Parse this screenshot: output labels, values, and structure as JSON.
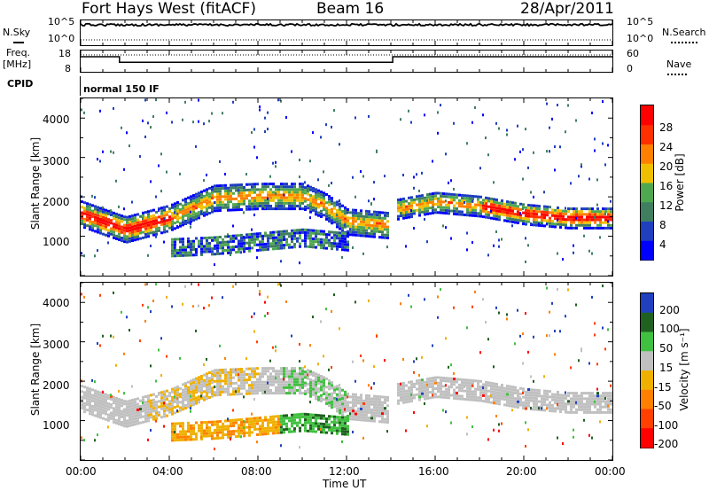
{
  "header": {
    "station": "Fort Hays West (fitACF)",
    "beam": "Beam 16",
    "date": "28/Apr/2011"
  },
  "top_panel": {
    "left_label": "N.Sky",
    "left_ticks": [
      "10^5",
      "10^0"
    ],
    "right_label": "N.Search",
    "right_ticks": [
      "10^5",
      "10^0"
    ]
  },
  "freq_panel": {
    "left_label_line1": "Freq.",
    "left_label_line2": "[MHz]",
    "left_ticks": [
      "18",
      "8"
    ],
    "right_label": "Nave",
    "right_ticks": [
      "60",
      "0"
    ]
  },
  "cpid": {
    "label": "CPID",
    "value": "normal 150 IF"
  },
  "x_axis": {
    "title": "Time UT",
    "ticks": [
      "00:00",
      "04:00",
      "08:00",
      "12:00",
      "16:00",
      "20:00",
      "00:00"
    ]
  },
  "power_panel": {
    "ylabel": "Slant Range [km]",
    "yticks": [
      "4000",
      "3000",
      "2000",
      "1000"
    ],
    "colorbar_title": "Power [dB]",
    "colorbar_ticks": [
      "28",
      "24",
      "20",
      "16",
      "12",
      "8",
      "4"
    ]
  },
  "velocity_panel": {
    "ylabel": "Slant Range [km]",
    "yticks": [
      "4000",
      "3000",
      "2000",
      "1000"
    ],
    "colorbar_title": "Velocity [m s⁻¹]",
    "colorbar_ticks": [
      "200",
      "100",
      "50",
      "15",
      "-15",
      "-50",
      "-100",
      "-200"
    ]
  },
  "colors": {
    "power_scale": [
      "#0000ff",
      "#1f3fbf",
      "#3f7f5f",
      "#4fa84f",
      "#f0c000",
      "#ff8000",
      "#ff3000",
      "#ff0000"
    ],
    "velocity_scale": [
      "#2040c0",
      "#206020",
      "#40c040",
      "#c0c0c0",
      "#f0b000",
      "#ff8000",
      "#ff4000",
      "#ff0000"
    ]
  },
  "chart_data": [
    {
      "type": "line",
      "panel": "noise",
      "series": [
        {
          "name": "N.Sky",
          "x": [
            "00:00",
            "04:00",
            "08:00",
            "12:00",
            "16:00",
            "20:00",
            "24:00"
          ],
          "values": [
            100000,
            100000,
            100000,
            100000,
            100000,
            100000,
            100000
          ]
        },
        {
          "name": "N.Search",
          "x": [
            "00:00",
            "24:00"
          ],
          "values": [
            1,
            1
          ]
        }
      ]
    },
    {
      "type": "line",
      "panel": "frequency",
      "series": [
        {
          "name": "Freq.",
          "x": [
            "00:00",
            "01:45",
            "01:45",
            "14:05",
            "14:05",
            "24:00"
          ],
          "values": [
            18,
            18,
            14.5,
            14.5,
            18,
            18
          ]
        },
        {
          "name": "Nave",
          "x": [
            "00:00",
            "24:00"
          ],
          "values": [
            58,
            58
          ]
        }
      ]
    },
    {
      "type": "heatmap",
      "panel": "power",
      "x_range": [
        "00:00",
        "24:00"
      ],
      "y_range": [
        0,
        4500
      ],
      "bands": [
        {
          "t": [
            0,
            2,
            4,
            6,
            8,
            10,
            11,
            12,
            14
          ],
          "range_km": [
            1600,
            1200,
            1500,
            2000,
            2050,
            2050,
            1800,
            1400,
            1300
          ]
        },
        {
          "t": [
            14,
            16,
            18,
            20,
            22,
            24
          ],
          "range_km": [
            1700,
            1900,
            1800,
            1600,
            1500,
            1500
          ]
        },
        {
          "t": [
            4,
            6,
            8,
            10,
            12
          ],
          "range_km": [
            750,
            800,
            900,
            1000,
            900
          ]
        }
      ]
    },
    {
      "type": "heatmap",
      "panel": "velocity",
      "x_range": [
        "00:00",
        "24:00"
      ],
      "y_range": [
        0,
        4500
      ]
    }
  ]
}
